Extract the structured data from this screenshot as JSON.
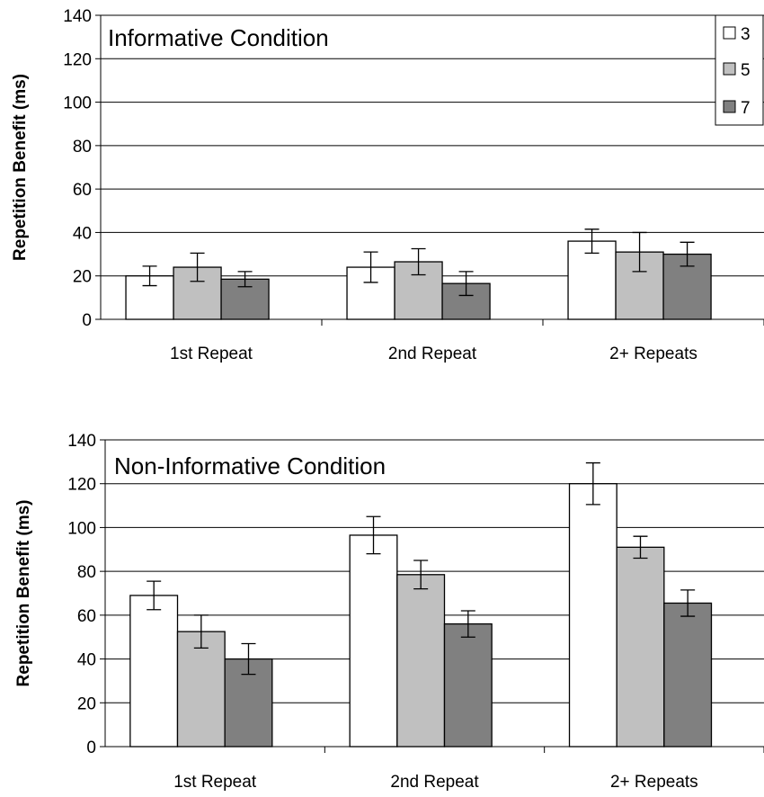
{
  "colors": {
    "3": "#ffffff",
    "5": "#c0c0c0",
    "7": "#808080",
    "grid": "#000000"
  },
  "chart_data": [
    {
      "type": "bar",
      "title": "Informative Condition",
      "ylabel": "Repetition Benefit (ms)",
      "ylim": [
        0,
        140
      ],
      "yticks": [
        0,
        20,
        40,
        60,
        80,
        100,
        120,
        140
      ],
      "grid": true,
      "legend": "top-right",
      "categories": [
        "1st Repeat",
        "2nd Repeat",
        "2+ Repeats"
      ],
      "series": [
        {
          "name": "3",
          "values": [
            20,
            24,
            36
          ],
          "errors": [
            4.5,
            7,
            5.5
          ]
        },
        {
          "name": "5",
          "values": [
            24,
            26.5,
            31
          ],
          "errors": [
            6.5,
            6,
            9
          ]
        },
        {
          "name": "7",
          "values": [
            18.5,
            16.5,
            30
          ],
          "errors": [
            3.5,
            5.5,
            5.5
          ]
        }
      ]
    },
    {
      "type": "bar",
      "title": "Non-Informative Condition",
      "ylabel": "Repetition Benefit (ms)",
      "ylim": [
        0,
        140
      ],
      "yticks": [
        0,
        20,
        40,
        60,
        80,
        100,
        120,
        140
      ],
      "grid": true,
      "categories": [
        "1st Repeat",
        "2nd Repeat",
        "2+ Repeats"
      ],
      "series": [
        {
          "name": "3",
          "values": [
            69,
            96.5,
            120
          ],
          "errors": [
            6.5,
            8.5,
            9.5
          ]
        },
        {
          "name": "5",
          "values": [
            52.5,
            78.5,
            91
          ],
          "errors": [
            7.5,
            6.5,
            5
          ]
        },
        {
          "name": "7",
          "values": [
            40,
            56,
            65.5
          ],
          "errors": [
            7,
            6,
            6
          ]
        }
      ]
    }
  ]
}
